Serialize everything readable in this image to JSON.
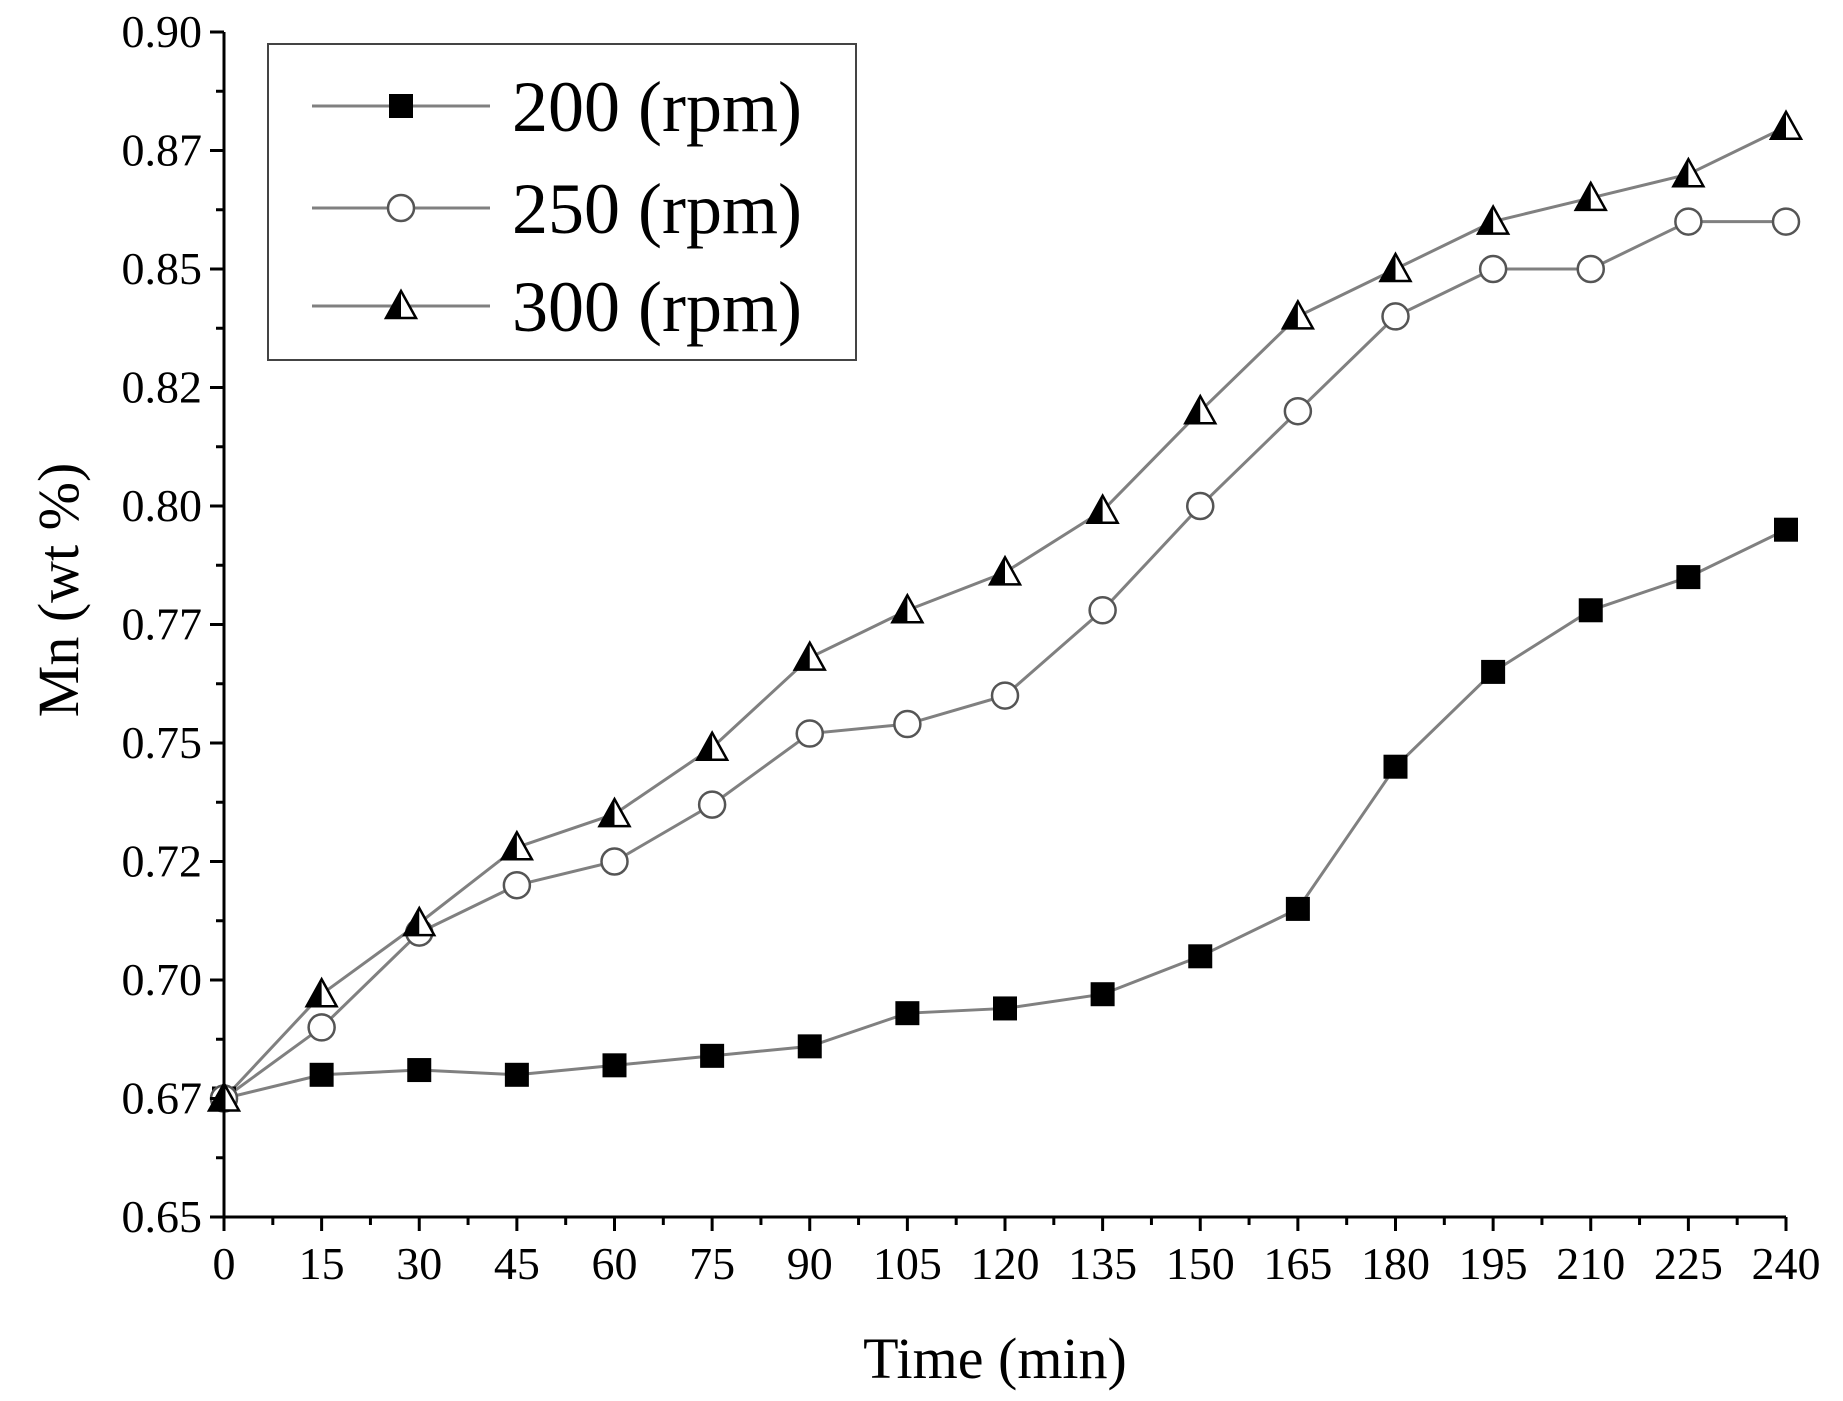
{
  "chart_data": {
    "type": "line",
    "title": "",
    "xlabel": "Time (min)",
    "ylabel": "Mn (wt %)",
    "x": [
      0,
      15,
      30,
      45,
      60,
      75,
      90,
      105,
      120,
      135,
      150,
      165,
      180,
      195,
      210,
      225,
      240
    ],
    "xlim": [
      0,
      240
    ],
    "ylim": [
      0.65,
      0.9
    ],
    "x_ticks": [
      0,
      15,
      30,
      45,
      60,
      75,
      90,
      105,
      120,
      135,
      150,
      165,
      180,
      195,
      210,
      225,
      240
    ],
    "x_tick_labels": [
      "0",
      "15",
      "30",
      "45",
      "60",
      "75",
      "90",
      "105",
      "120",
      "135",
      "150",
      "165",
      "180",
      "195",
      "210",
      "225",
      "240"
    ],
    "y_ticks": [
      0.65,
      0.675,
      0.7,
      0.725,
      0.75,
      0.775,
      0.8,
      0.825,
      0.85,
      0.875,
      0.9
    ],
    "y_tick_labels": [
      "0.65",
      "0.67",
      "0.70",
      "0.72",
      "0.75",
      "0.77",
      "0.80",
      "0.82",
      "0.85",
      "0.87",
      "0.90"
    ],
    "grid": false,
    "legend_position": "top-left",
    "series": [
      {
        "name": "200 (rpm)",
        "marker": "filled-square",
        "values": [
          0.675,
          0.68,
          0.681,
          0.68,
          0.682,
          0.684,
          0.686,
          0.693,
          0.694,
          0.697,
          0.705,
          0.715,
          0.745,
          0.765,
          0.778,
          0.785,
          0.795
        ]
      },
      {
        "name": "250 (rpm)",
        "marker": "open-circle",
        "values": [
          0.675,
          0.69,
          0.71,
          0.72,
          0.725,
          0.737,
          0.752,
          0.754,
          0.76,
          0.778,
          0.8,
          0.82,
          0.84,
          0.85,
          0.85,
          0.86,
          0.86
        ]
      },
      {
        "name": "300 (rpm)",
        "marker": "half-filled-triangle",
        "values": [
          0.675,
          0.697,
          0.712,
          0.728,
          0.735,
          0.749,
          0.768,
          0.778,
          0.786,
          0.799,
          0.82,
          0.84,
          0.85,
          0.86,
          0.865,
          0.87,
          0.88
        ]
      }
    ]
  }
}
